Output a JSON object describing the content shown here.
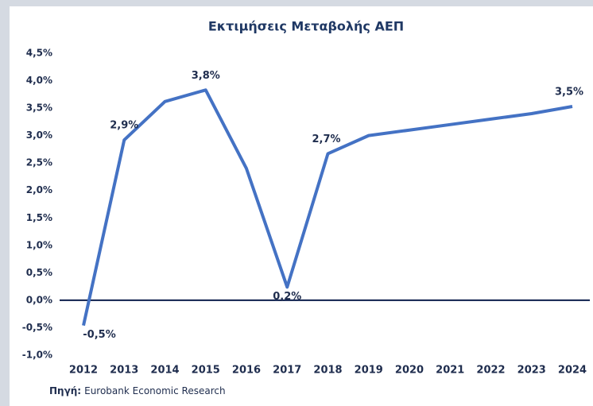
{
  "chart_data": {
    "type": "line",
    "title": "Εκτιμήσεις Μεταβολής ΑΕΠ",
    "categories": [
      "2012",
      "2013",
      "2014",
      "2015",
      "2016",
      "2017",
      "2018",
      "2019",
      "2020",
      "2021",
      "2022",
      "2023",
      "2024"
    ],
    "series": [
      {
        "name": null,
        "color": "#4472c4",
        "values": [
          -0.46,
          2.92,
          3.62,
          3.83,
          2.4,
          0.24,
          2.67,
          3.0,
          3.1,
          3.2,
          3.3,
          3.4,
          3.53
        ],
        "value_labels": [
          "-0,5%",
          "2,9%",
          null,
          "3,8%",
          null,
          "0,2%",
          "2,7%",
          null,
          null,
          null,
          null,
          null,
          "3,5%"
        ]
      }
    ],
    "ylim": [
      -1.0,
      4.5
    ],
    "yticks": [
      {
        "value": -1.0,
        "label": "-1,0%"
      },
      {
        "value": -0.5,
        "label": "-0,5%"
      },
      {
        "value": 0,
        "label": "0,0%"
      },
      {
        "value": 0.5,
        "label": "0,5%"
      },
      {
        "value": 1.0,
        "label": "1,0%"
      },
      {
        "value": 1.5,
        "label": "1,5%"
      },
      {
        "value": 2.0,
        "label": "2,0%"
      },
      {
        "value": 2.5,
        "label": "2,5%"
      },
      {
        "value": 3.0,
        "label": "3,0%"
      },
      {
        "value": 3.5,
        "label": "3,5%"
      },
      {
        "value": 4.0,
        "label": "4,0%"
      },
      {
        "value": 4.5,
        "label": "4,5%"
      }
    ],
    "grid": false,
    "source": {
      "label": "Πηγή:",
      "text": "Eurobank Economic Research"
    }
  }
}
